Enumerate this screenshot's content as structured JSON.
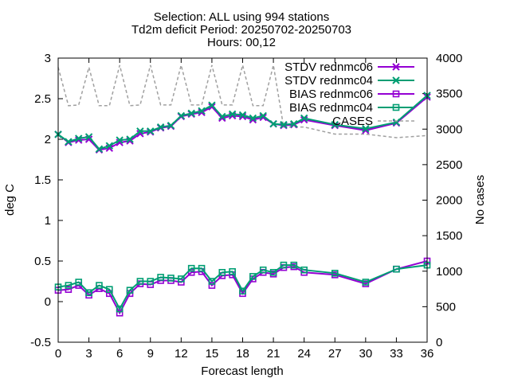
{
  "chart_data": {
    "type": "line",
    "title_lines": [
      "Selection: ALL using   994 stations",
      "Td2m deficit   Period: 20250702-20250703",
      "Hours: 00,12"
    ],
    "xlabel": "Forecast length",
    "ylabel": "deg C",
    "y2label": "No cases",
    "xlim": [
      0,
      36
    ],
    "ylim": [
      -0.5,
      3
    ],
    "y2lim": [
      0,
      4000
    ],
    "xticks": [
      0,
      3,
      6,
      9,
      12,
      15,
      18,
      21,
      24,
      27,
      30,
      33,
      36
    ],
    "yticks": [
      "-0.5",
      "0",
      "0.5",
      "1",
      "1.5",
      "2",
      "2.5",
      "3"
    ],
    "y2ticks": [
      0,
      500,
      1000,
      1500,
      2000,
      2500,
      3000,
      3500,
      4000
    ],
    "legend_position": "top-right",
    "x": [
      0,
      1,
      2,
      3,
      4,
      5,
      6,
      7,
      8,
      9,
      10,
      11,
      12,
      13,
      14,
      15,
      16,
      17,
      18,
      19,
      20,
      21,
      22,
      23,
      24,
      27,
      30,
      33,
      36
    ],
    "series": [
      {
        "name": "STDV rednmc06",
        "axis": "y1",
        "color": "#9400d3",
        "marker": "x",
        "values": [
          2.06,
          1.96,
          1.99,
          2.0,
          1.87,
          1.89,
          1.96,
          1.98,
          2.07,
          2.09,
          2.14,
          2.16,
          2.28,
          2.31,
          2.33,
          2.4,
          2.26,
          2.29,
          2.28,
          2.24,
          2.27,
          2.19,
          2.17,
          2.18,
          2.24,
          2.17,
          2.11,
          2.2,
          2.52
        ]
      },
      {
        "name": "STDV rednmc04",
        "axis": "y1",
        "color": "#009e73",
        "marker": "x",
        "values": [
          2.06,
          1.97,
          2.01,
          2.03,
          1.88,
          1.92,
          1.99,
          2.0,
          2.1,
          2.1,
          2.15,
          2.17,
          2.29,
          2.32,
          2.35,
          2.42,
          2.28,
          2.31,
          2.3,
          2.26,
          2.29,
          2.19,
          2.18,
          2.19,
          2.26,
          2.18,
          2.13,
          2.21,
          2.54
        ]
      },
      {
        "name": "BIAS rednmc06",
        "axis": "y1",
        "color": "#9400d3",
        "marker": "square",
        "values": [
          0.14,
          0.15,
          0.2,
          0.08,
          0.16,
          0.1,
          -0.14,
          0.1,
          0.22,
          0.21,
          0.26,
          0.26,
          0.24,
          0.36,
          0.37,
          0.2,
          0.32,
          0.33,
          0.1,
          0.28,
          0.36,
          0.34,
          0.42,
          0.43,
          0.36,
          0.33,
          0.22,
          0.4,
          0.5
        ]
      },
      {
        "name": "BIAS rednmc04",
        "axis": "y1",
        "color": "#009e73",
        "marker": "square",
        "values": [
          0.18,
          0.2,
          0.24,
          0.11,
          0.2,
          0.15,
          -0.09,
          0.14,
          0.25,
          0.25,
          0.3,
          0.29,
          0.28,
          0.41,
          0.41,
          0.25,
          0.36,
          0.37,
          0.13,
          0.31,
          0.39,
          0.36,
          0.45,
          0.45,
          0.39,
          0.35,
          0.24,
          0.4,
          0.45
        ]
      },
      {
        "name": "CASES",
        "axis": "y2",
        "color": "#a0a0a0",
        "marker": "none",
        "values": [
          3870,
          3330,
          3340,
          3870,
          3330,
          3330,
          3900,
          3330,
          3340,
          3900,
          3340,
          3340,
          3900,
          3340,
          3340,
          3900,
          3340,
          3340,
          3900,
          3330,
          3330,
          3900,
          3030,
          3030,
          3030,
          2930,
          2930,
          2880,
          2910
        ]
      }
    ]
  }
}
